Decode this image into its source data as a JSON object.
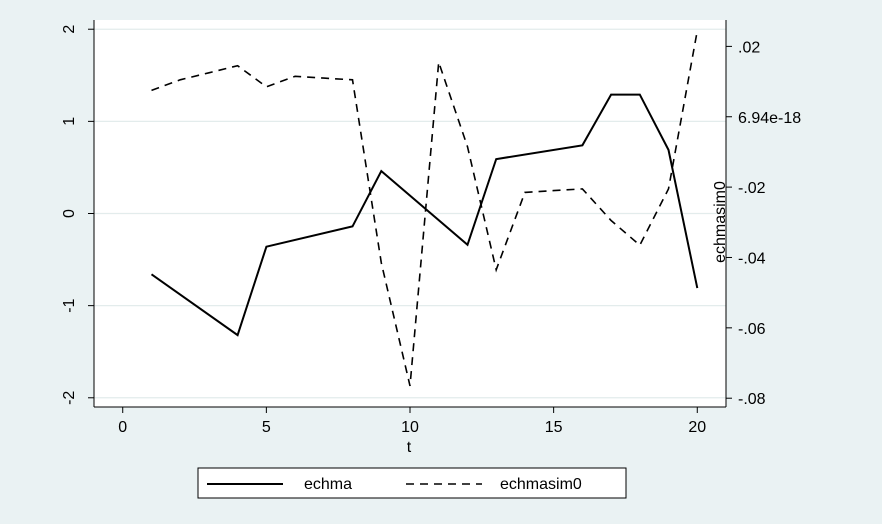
{
  "chart_data": {
    "type": "line",
    "title": "",
    "xlabel": "t",
    "ylabel_left": "",
    "ylabel_right": "echmasim0",
    "xlim": [
      -1,
      21
    ],
    "ylim_left": [
      -2.1,
      2.1
    ],
    "ylim_right": [
      -0.0825,
      0.0275
    ],
    "x_ticks": [
      0,
      5,
      10,
      15,
      20
    ],
    "x_tick_labels": [
      "0",
      "5",
      "10",
      "15",
      "20"
    ],
    "y_left_ticks": [
      -2,
      -1,
      0,
      1,
      2
    ],
    "y_left_tick_labels": [
      "-2",
      "-1",
      "0",
      "1",
      "2"
    ],
    "y_right_ticks": [
      -0.08,
      -0.06,
      -0.04,
      -0.02,
      0,
      0.02
    ],
    "y_right_tick_labels": [
      "-.08",
      "-.06",
      "-.04",
      "-.02",
      "6.94e-18",
      ".02"
    ],
    "grid": "horizontal",
    "legend_position": "bottom",
    "series": [
      {
        "name": "echma",
        "axis": "left",
        "style": "solid",
        "color": "#000000",
        "x": [
          1,
          4,
          5,
          8,
          9,
          12,
          13,
          16,
          17,
          18,
          19,
          20
        ],
        "y": [
          -0.66,
          -1.32,
          -0.36,
          -0.14,
          0.46,
          -0.34,
          0.59,
          0.74,
          1.29,
          1.29,
          0.69,
          -0.81
        ]
      },
      {
        "name": "echmasim0",
        "axis": "right",
        "style": "dashed",
        "color": "#000000",
        "x": [
          1,
          2,
          3,
          4,
          5,
          6,
          7,
          8,
          9,
          10,
          11,
          12,
          13,
          14,
          15,
          16,
          17,
          18,
          19,
          20
        ],
        "y": [
          0.0075,
          0.0105,
          0.0125,
          0.0145,
          0.0085,
          0.0115,
          0.011,
          0.0105,
          -0.0415,
          -0.0765,
          0.0155,
          -0.0085,
          -0.0435,
          -0.0215,
          -0.021,
          -0.0205,
          -0.0295,
          -0.0365,
          -0.0205,
          0.0245
        ]
      }
    ]
  }
}
